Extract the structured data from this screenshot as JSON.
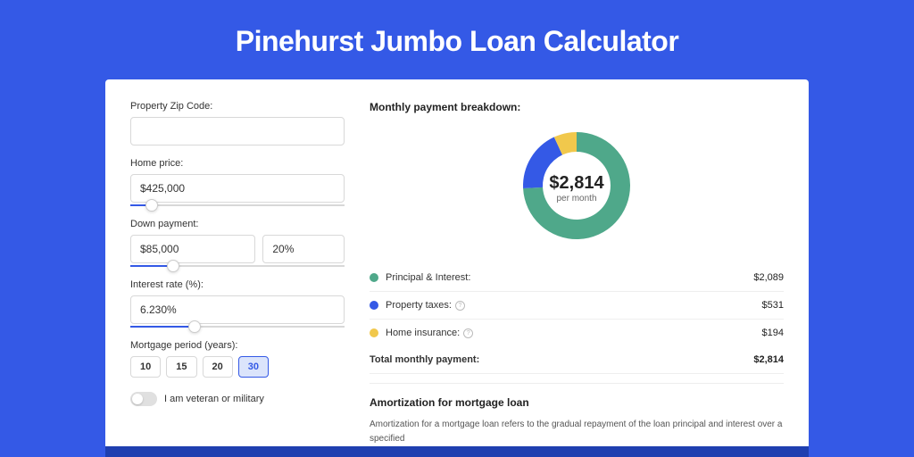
{
  "page": {
    "title": "Pinehurst Jumbo Loan Calculator",
    "background_color": "#3459e6",
    "card_background": "#ffffff"
  },
  "form": {
    "zip": {
      "label": "Property Zip Code:",
      "value": ""
    },
    "home_price": {
      "label": "Home price:",
      "value": "$425,000",
      "slider_percent": 10
    },
    "down_payment": {
      "label": "Down payment:",
      "amount": "$85,000",
      "percent": "20%",
      "slider_percent": 20
    },
    "interest_rate": {
      "label": "Interest rate (%):",
      "value": "6.230%",
      "slider_percent": 30
    },
    "mortgage_period": {
      "label": "Mortgage period (years):",
      "options": [
        "10",
        "15",
        "20",
        "30"
      ],
      "active": "30"
    },
    "veteran": {
      "label": "I am veteran or military",
      "checked": false
    }
  },
  "breakdown": {
    "title": "Monthly payment breakdown:",
    "donut": {
      "type": "pie",
      "center_amount": "$2,814",
      "center_sub": "per month",
      "outer_radius": 60,
      "inner_radius": 38,
      "slices": [
        {
          "label": "Principal & Interest",
          "value": 2089,
          "color": "#4fa88a",
          "percent": 74.2
        },
        {
          "label": "Property taxes",
          "value": 531,
          "color": "#3459e6",
          "percent": 18.9
        },
        {
          "label": "Home insurance",
          "value": 194,
          "color": "#f1c84c",
          "percent": 6.9
        }
      ]
    },
    "items": [
      {
        "label": "Principal & Interest:",
        "value": "$2,089",
        "color": "#4fa88a",
        "info": false
      },
      {
        "label": "Property taxes:",
        "value": "$531",
        "color": "#3459e6",
        "info": true
      },
      {
        "label": "Home insurance:",
        "value": "$194",
        "color": "#f1c84c",
        "info": true
      }
    ],
    "total": {
      "label": "Total monthly payment:",
      "value": "$2,814"
    }
  },
  "amortization": {
    "title": "Amortization for mortgage loan",
    "text": "Amortization for a mortgage loan refers to the gradual repayment of the loan principal and interest over a specified"
  }
}
